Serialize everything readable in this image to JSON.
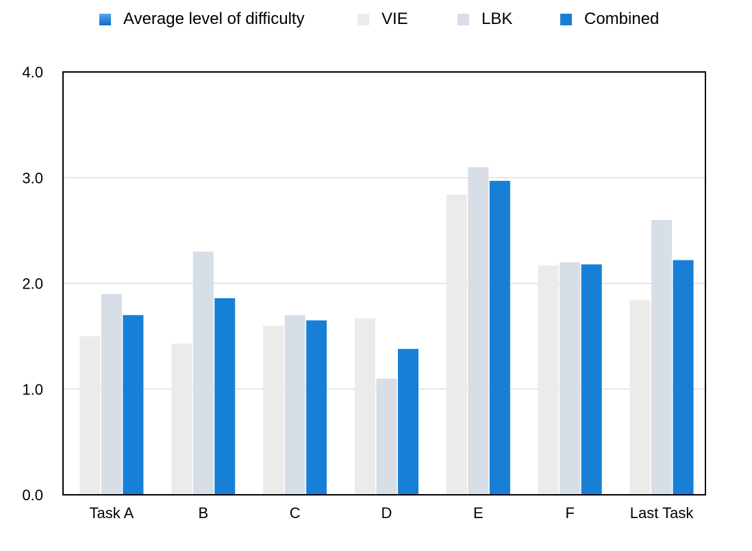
{
  "legend": {
    "title": "Average level of difficulty"
  },
  "colors": {
    "VIE": "#ebebea",
    "LBK": "#d7dee6",
    "Combined": "#1780d6",
    "title_swatch_top": "#5aa6ec",
    "title_swatch_bottom": "#1068c6",
    "grid": "#d0d0d0",
    "axis": "#000000"
  },
  "chart_data": {
    "type": "bar",
    "categories": [
      "Task A",
      "B",
      "C",
      "D",
      "E",
      "F",
      "Last Task"
    ],
    "series": [
      {
        "name": "VIE",
        "values": [
          1.5,
          1.43,
          1.6,
          1.67,
          2.84,
          2.17,
          1.84
        ]
      },
      {
        "name": "LBK",
        "values": [
          1.9,
          2.3,
          1.7,
          1.1,
          3.1,
          2.2,
          2.6
        ]
      },
      {
        "name": "Combined",
        "values": [
          1.7,
          1.86,
          1.65,
          1.38,
          2.97,
          2.18,
          2.22
        ]
      }
    ],
    "yticks": [
      "0.0",
      "1.0",
      "2.0",
      "3.0",
      "4.0"
    ],
    "ylim": [
      0,
      4
    ],
    "grid": true,
    "legend_position": "top"
  }
}
